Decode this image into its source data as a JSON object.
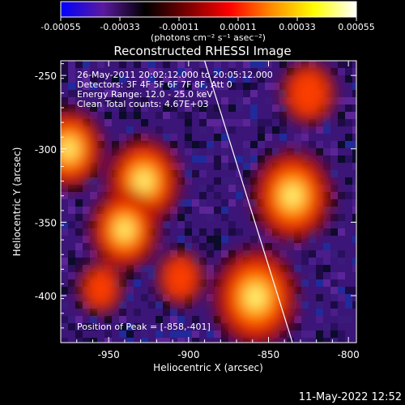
{
  "colorbar": {
    "ticks": [
      "-0.00055",
      "-0.00033",
      "-0.00011",
      "0.00011",
      "0.00033",
      "0.00055"
    ],
    "tick_values": [
      -0.00055,
      -0.00033,
      -0.00011,
      0.00011,
      0.00033,
      0.00055
    ],
    "units_label": "(photons cm⁻² s⁻¹ asec⁻²)",
    "stops": [
      "#0000ff",
      "#5a1aa0",
      "#000000",
      "#7a0000",
      "#ff0000",
      "#ff8c00",
      "#ffff00",
      "#ffffff"
    ]
  },
  "chart_data": {
    "type": "heatmap",
    "title": "Reconstructed RHESSI Image",
    "xlabel": "Heliocentric X (arcsec)",
    "ylabel": "Heliocentric Y (arcsec)",
    "xlim": [
      -980,
      -795
    ],
    "ylim": [
      -432,
      -240
    ],
    "x_ticks": [
      -950,
      -900,
      -850,
      -800
    ],
    "x_tick_labels": [
      "-950",
      "-900",
      "-850",
      "-800"
    ],
    "y_ticks": [
      -250,
      -300,
      -350,
      -400
    ],
    "y_tick_labels": [
      "-250",
      "-300",
      "-350",
      "-400"
    ],
    "grid": false,
    "value_range": [
      -0.00055,
      0.00055
    ],
    "sources": [
      {
        "x": -928,
        "y": -322,
        "intensity": 0.00045
      },
      {
        "x": -940,
        "y": -355,
        "intensity": 0.0004
      },
      {
        "x": -858,
        "y": -401,
        "intensity": 0.00055
      },
      {
        "x": -835,
        "y": -332,
        "intensity": 0.0005
      },
      {
        "x": -975,
        "y": -300,
        "intensity": 0.0004
      },
      {
        "x": -825,
        "y": -262,
        "intensity": 0.00025
      },
      {
        "x": -905,
        "y": -388,
        "intensity": 0.00018
      },
      {
        "x": -955,
        "y": -395,
        "intensity": 0.00015
      }
    ],
    "limb_line": [
      [
        -890,
        -240
      ],
      [
        -835,
        -432
      ]
    ],
    "annotations": [
      "26-May-2011 20:02:12.000 to 20:05:12.000",
      "Detectors: 3F 4F 5F 6F 7F 8F, Att 0",
      "Energy Range: 12.0 - 25.0 keV",
      "Clean     Total counts: 4.67E+03"
    ],
    "peak_label": "Position of Peak = [-858,-401]"
  },
  "footer": {
    "timestamp": "11-May-2022 12:52"
  }
}
